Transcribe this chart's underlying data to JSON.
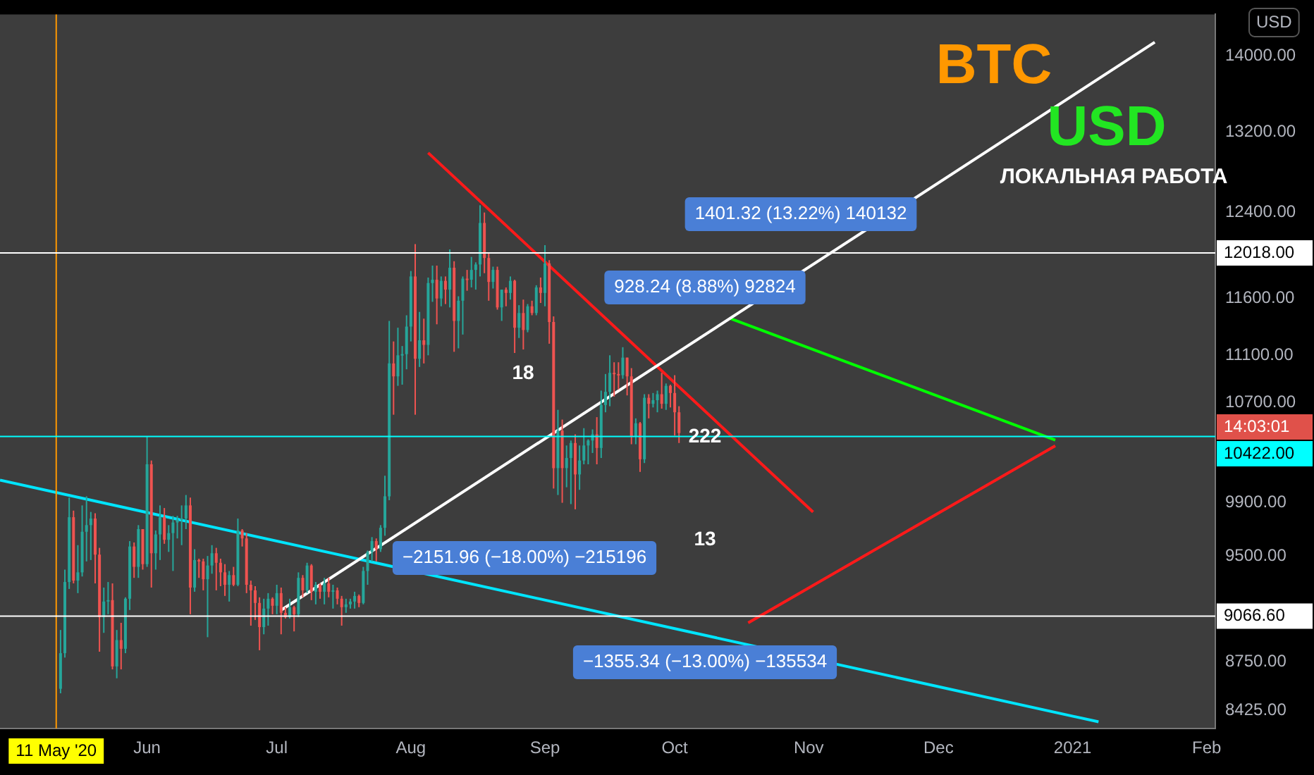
{
  "chart_data": {
    "type": "candlestick",
    "ylabel": "USD",
    "log": "y",
    "grid": false,
    "legend": false,
    "xlim": [
      "2020-04-28",
      "2021-02-03"
    ],
    "xticks": [
      {
        "value": "2020-06-01",
        "label": "Jun"
      },
      {
        "value": "2020-07-01",
        "label": "Jul"
      },
      {
        "value": "2020-08-01",
        "label": "Aug"
      },
      {
        "value": "2020-09-01",
        "label": "Sep"
      },
      {
        "value": "2020-10-01",
        "label": "Oct"
      },
      {
        "value": "2020-11-01",
        "label": "Nov"
      },
      {
        "value": "2020-12-01",
        "label": "Dec"
      },
      {
        "value": "2021-01-01",
        "label": "2021"
      },
      {
        "value": "2021-02-01",
        "label": "Feb"
      }
    ],
    "ylim": [
      8310,
      14460
    ],
    "yticks": [
      {
        "value": 8425,
        "label": "8425.00"
      },
      {
        "value": 8750,
        "label": "8750.00"
      },
      {
        "value": 9500,
        "label": "9500.00"
      },
      {
        "value": 9900,
        "label": "9900.00"
      },
      {
        "value": 10700,
        "label": "10700.00"
      },
      {
        "value": 11100,
        "label": "11100.00"
      },
      {
        "value": 11600,
        "label": "11600.00"
      },
      {
        "value": 12400,
        "label": "12400.00"
      },
      {
        "value": 13200,
        "label": "13200.00"
      },
      {
        "value": 14000,
        "label": "14000.00"
      }
    ],
    "x": [
      "2020-05-12",
      "2020-05-13",
      "2020-05-14",
      "2020-05-15",
      "2020-05-16",
      "2020-05-17",
      "2020-05-18",
      "2020-05-19",
      "2020-05-20",
      "2020-05-21",
      "2020-05-22",
      "2020-05-23",
      "2020-05-24",
      "2020-05-25",
      "2020-05-26",
      "2020-05-27",
      "2020-05-28",
      "2020-05-29",
      "2020-05-30",
      "2020-05-31",
      "2020-06-01",
      "2020-06-02",
      "2020-06-03",
      "2020-06-04",
      "2020-06-05",
      "2020-06-06",
      "2020-06-07",
      "2020-06-08",
      "2020-06-09",
      "2020-06-10",
      "2020-06-11",
      "2020-06-12",
      "2020-06-13",
      "2020-06-14",
      "2020-06-15",
      "2020-06-16",
      "2020-06-17",
      "2020-06-18",
      "2020-06-19",
      "2020-06-20",
      "2020-06-21",
      "2020-06-22",
      "2020-06-23",
      "2020-06-24",
      "2020-06-25",
      "2020-06-26",
      "2020-06-27",
      "2020-06-28",
      "2020-06-29",
      "2020-06-30",
      "2020-07-01",
      "2020-07-02",
      "2020-07-03",
      "2020-07-04",
      "2020-07-05",
      "2020-07-06",
      "2020-07-07",
      "2020-07-08",
      "2020-07-09",
      "2020-07-10",
      "2020-07-11",
      "2020-07-12",
      "2020-07-13",
      "2020-07-14",
      "2020-07-15",
      "2020-07-16",
      "2020-07-17",
      "2020-07-18",
      "2020-07-19",
      "2020-07-20",
      "2020-07-21",
      "2020-07-22",
      "2020-07-23",
      "2020-07-24",
      "2020-07-25",
      "2020-07-26",
      "2020-07-27",
      "2020-07-28",
      "2020-07-29",
      "2020-07-30",
      "2020-07-31",
      "2020-08-01",
      "2020-08-02",
      "2020-08-03",
      "2020-08-04",
      "2020-08-05",
      "2020-08-06",
      "2020-08-07",
      "2020-08-08",
      "2020-08-09",
      "2020-08-10",
      "2020-08-11",
      "2020-08-12",
      "2020-08-13",
      "2020-08-14",
      "2020-08-15",
      "2020-08-16",
      "2020-08-17",
      "2020-08-18",
      "2020-08-19",
      "2020-08-20",
      "2020-08-21",
      "2020-08-22",
      "2020-08-23",
      "2020-08-24",
      "2020-08-25",
      "2020-08-26",
      "2020-08-27",
      "2020-08-28",
      "2020-08-29",
      "2020-08-30",
      "2020-08-31",
      "2020-09-01",
      "2020-09-02",
      "2020-09-03",
      "2020-09-04",
      "2020-09-05",
      "2020-09-06",
      "2020-09-07",
      "2020-09-08",
      "2020-09-09",
      "2020-09-10",
      "2020-09-11",
      "2020-09-12",
      "2020-09-13",
      "2020-09-14",
      "2020-09-15",
      "2020-09-16",
      "2020-09-17",
      "2020-09-18",
      "2020-09-19",
      "2020-09-20",
      "2020-09-21",
      "2020-09-22",
      "2020-09-23",
      "2020-09-24",
      "2020-09-25",
      "2020-09-26",
      "2020-09-27",
      "2020-09-28",
      "2020-09-29",
      "2020-09-30",
      "2020-10-01",
      "2020-10-02"
    ],
    "ohlc": [
      [
        8570,
        8970,
        8540,
        8810
      ],
      [
        8810,
        9400,
        8780,
        9310
      ],
      [
        9310,
        9940,
        9260,
        9790
      ],
      [
        9790,
        9840,
        9300,
        9320
      ],
      [
        9320,
        9580,
        9230,
        9380
      ],
      [
        9380,
        9880,
        9350,
        9680
      ],
      [
        9680,
        9950,
        9460,
        9730
      ],
      [
        9730,
        9830,
        9470,
        9780
      ],
      [
        9780,
        9820,
        9300,
        9510
      ],
      [
        9510,
        9560,
        8820,
        9060
      ],
      [
        9060,
        9270,
        8950,
        9170
      ],
      [
        9170,
        9310,
        9080,
        9180
      ],
      [
        9180,
        9300,
        8700,
        8720
      ],
      [
        8720,
        8970,
        8640,
        8900
      ],
      [
        8900,
        9020,
        8700,
        8840
      ],
      [
        8840,
        9200,
        8810,
        9190
      ],
      [
        9190,
        9610,
        9110,
        9570
      ],
      [
        9570,
        9600,
        9340,
        9420
      ],
      [
        9420,
        9730,
        9340,
        9700
      ],
      [
        9700,
        9700,
        9400,
        9440
      ],
      [
        9440,
        10420,
        9420,
        10200
      ],
      [
        10200,
        10230,
        9270,
        9520
      ],
      [
        9520,
        9690,
        9400,
        9660
      ],
      [
        9660,
        9880,
        9470,
        9790
      ],
      [
        9790,
        9860,
        9590,
        9620
      ],
      [
        9620,
        9730,
        9530,
        9670
      ],
      [
        9670,
        9800,
        9390,
        9750
      ],
      [
        9750,
        9800,
        9630,
        9770
      ],
      [
        9770,
        9880,
        9580,
        9780
      ],
      [
        9780,
        9960,
        9700,
        9880
      ],
      [
        9880,
        9940,
        9080,
        9270
      ],
      [
        9270,
        9550,
        9240,
        9470
      ],
      [
        9470,
        9480,
        9340,
        9460
      ],
      [
        9460,
        9480,
        9250,
        9330
      ],
      [
        9330,
        9500,
        8920,
        9430
      ],
      [
        9430,
        9580,
        9370,
        9520
      ],
      [
        9520,
        9560,
        9250,
        9450
      ],
      [
        9450,
        9480,
        9280,
        9380
      ],
      [
        9380,
        9440,
        9210,
        9290
      ],
      [
        9290,
        9390,
        9170,
        9360
      ],
      [
        9360,
        9420,
        9280,
        9290
      ],
      [
        9290,
        9780,
        9280,
        9690
      ],
      [
        9690,
        9700,
        9570,
        9630
      ],
      [
        9630,
        9670,
        9230,
        9290
      ],
      [
        9290,
        9320,
        9000,
        9250
      ],
      [
        9250,
        9280,
        9040,
        9160
      ],
      [
        9160,
        9200,
        8830,
        8990
      ],
      [
        8990,
        9190,
        8940,
        9120
      ],
      [
        9120,
        9230,
        9000,
        9190
      ],
      [
        9190,
        9200,
        9080,
        9140
      ],
      [
        9140,
        9290,
        9080,
        9230
      ],
      [
        9230,
        9270,
        8940,
        9090
      ],
      [
        9090,
        9130,
        9050,
        9060
      ],
      [
        9060,
        9190,
        9050,
        9130
      ],
      [
        9130,
        9140,
        8960,
        9080
      ],
      [
        9080,
        9380,
        9060,
        9340
      ],
      [
        9340,
        9360,
        9200,
        9250
      ],
      [
        9250,
        9450,
        9230,
        9430
      ],
      [
        9430,
        9440,
        9180,
        9240
      ],
      [
        9240,
        9310,
        9150,
        9290
      ],
      [
        9290,
        9300,
        9190,
        9240
      ],
      [
        9240,
        9340,
        9150,
        9300
      ],
      [
        9300,
        9340,
        9200,
        9240
      ],
      [
        9240,
        9290,
        9120,
        9250
      ],
      [
        9250,
        9270,
        9150,
        9190
      ],
      [
        9190,
        9210,
        9000,
        9130
      ],
      [
        9130,
        9190,
        9090,
        9150
      ],
      [
        9150,
        9190,
        9120,
        9170
      ],
      [
        9170,
        9240,
        9120,
        9210
      ],
      [
        9210,
        9220,
        9130,
        9160
      ],
      [
        9160,
        9420,
        9150,
        9390
      ],
      [
        9390,
        9540,
        9290,
        9530
      ],
      [
        9530,
        9640,
        9460,
        9610
      ],
      [
        9610,
        9630,
        9460,
        9550
      ],
      [
        9550,
        9730,
        9530,
        9710
      ],
      [
        9710,
        10110,
        9650,
        9950
      ],
      [
        9950,
        11400,
        9920,
        11030
      ],
      [
        11030,
        11220,
        10600,
        10920
      ],
      [
        10920,
        11340,
        10840,
        11100
      ],
      [
        11100,
        11180,
        10850,
        11110
      ],
      [
        11110,
        11450,
        10980,
        11350
      ],
      [
        11350,
        11850,
        11220,
        11800
      ],
      [
        11800,
        12100,
        10600,
        11070
      ],
      [
        11070,
        11480,
        11000,
        11230
      ],
      [
        11230,
        11420,
        11030,
        11190
      ],
      [
        11190,
        11790,
        11100,
        11740
      ],
      [
        11740,
        11900,
        11570,
        11770
      ],
      [
        11770,
        11900,
        11370,
        11600
      ],
      [
        11600,
        11800,
        11530,
        11760
      ],
      [
        11760,
        11800,
        11550,
        11680
      ],
      [
        11680,
        12050,
        11520,
        11880
      ],
      [
        11880,
        11940,
        11130,
        11400
      ],
      [
        11400,
        11620,
        11160,
        11580
      ],
      [
        11580,
        11800,
        11280,
        11780
      ],
      [
        11780,
        11860,
        11670,
        11770
      ],
      [
        11770,
        11980,
        11700,
        11860
      ],
      [
        11860,
        11930,
        11680,
        11910
      ],
      [
        11910,
        12470,
        11800,
        12300
      ],
      [
        12300,
        12400,
        11830,
        11970
      ],
      [
        11970,
        12020,
        11580,
        11750
      ],
      [
        11750,
        11890,
        11690,
        11860
      ],
      [
        11860,
        11890,
        11500,
        11520
      ],
      [
        11520,
        11680,
        11400,
        11680
      ],
      [
        11680,
        11700,
        11530,
        11650
      ],
      [
        11650,
        11800,
        11590,
        11760
      ],
      [
        11760,
        11770,
        11120,
        11340
      ],
      [
        11340,
        11540,
        11250,
        11470
      ],
      [
        11470,
        11590,
        11150,
        11320
      ],
      [
        11320,
        11550,
        11300,
        11530
      ],
      [
        11530,
        11580,
        11450,
        11470
      ],
      [
        11470,
        11720,
        11450,
        11700
      ],
      [
        11700,
        11790,
        11560,
        11650
      ],
      [
        11650,
        12090,
        11530,
        11920
      ],
      [
        11920,
        11950,
        11200,
        11390
      ],
      [
        11390,
        11440,
        10010,
        10170
      ],
      [
        10170,
        10640,
        9960,
        10470
      ],
      [
        10470,
        10560,
        9900,
        10170
      ],
      [
        10170,
        10350,
        10020,
        10250
      ],
      [
        10250,
        10390,
        9890,
        10370
      ],
      [
        10370,
        10440,
        9850,
        10120
      ],
      [
        10120,
        10350,
        10000,
        10230
      ],
      [
        10230,
        10490,
        10200,
        10350
      ],
      [
        10350,
        10400,
        10200,
        10390
      ],
      [
        10390,
        10480,
        10290,
        10440
      ],
      [
        10440,
        10580,
        10200,
        10330
      ],
      [
        10330,
        10800,
        10250,
        10680
      ],
      [
        10680,
        10940,
        10620,
        10790
      ],
      [
        10790,
        11100,
        10670,
        10950
      ],
      [
        10950,
        11040,
        10750,
        10940
      ],
      [
        10940,
        11040,
        10810,
        10930
      ],
      [
        10930,
        11170,
        10900,
        11080
      ],
      [
        11080,
        11080,
        10760,
        10920
      ],
      [
        10920,
        10990,
        10360,
        10420
      ],
      [
        10420,
        10570,
        10360,
        10530
      ],
      [
        10530,
        10540,
        10140,
        10240
      ],
      [
        10240,
        10770,
        10210,
        10740
      ],
      [
        10740,
        10770,
        10570,
        10690
      ],
      [
        10690,
        10780,
        10660,
        10720
      ],
      [
        10720,
        10800,
        10620,
        10770
      ],
      [
        10770,
        10950,
        10650,
        10690
      ],
      [
        10690,
        10860,
        10640,
        10840
      ],
      [
        10840,
        10850,
        10660,
        10780
      ],
      [
        10780,
        10930,
        10430,
        10620
      ],
      [
        10620,
        10670,
        10370,
        10450
      ]
    ],
    "series": [
      {
        "type": "line",
        "color": "#ffffff",
        "x": [
          "2020-07-02",
          "2021-01-20"
        ],
        "values": [
          9109,
          14151
        ]
      },
      {
        "type": "line",
        "color": "#ff1a1a",
        "x": [
          "2020-08-05",
          "2020-11-02"
        ],
        "values": [
          12988,
          9829
        ]
      },
      {
        "type": "line",
        "color": "#00e5ff",
        "x": [
          "2020-04-28",
          "2021-01-07"
        ],
        "values": [
          10075,
          8353
        ]
      },
      {
        "type": "line",
        "color": "#00ff00",
        "x": [
          "2020-12-28",
          "2020-10-14"
        ],
        "values": [
          10393,
          11419
        ]
      },
      {
        "type": "line",
        "color": "#ff1a1a",
        "x": [
          "2020-12-28",
          "2020-10-18"
        ],
        "values": [
          10348,
          9020
        ]
      }
    ],
    "ref_lines": [
      {
        "axis": "x",
        "value": "2020-05-11",
        "label": "11 May '20",
        "color": "#ff9800"
      },
      {
        "axis": "y",
        "value": 12018,
        "label": "12018.00",
        "color": "#ffffff"
      },
      {
        "axis": "y",
        "value": 10422,
        "label": "10422.00",
        "color": "#00ffff"
      },
      {
        "axis": "y",
        "value": 9066.6,
        "label": "9066.60",
        "color": "#ffffff"
      }
    ],
    "annotations": [
      "BTC",
      "USD",
      "ЛОКАЛЬНАЯ РАБОТА",
      "1401.32 (13.22%) 140132",
      "928.24 (8.88%) 92824",
      "−2151.96 (−18.00%) −215196",
      "−1355.34 (−13.00%) −135534",
      "18",
      "222",
      "13",
      "14:03:01"
    ]
  }
}
